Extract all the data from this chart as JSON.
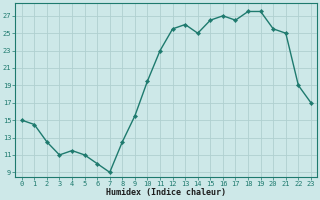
{
  "x": [
    0,
    1,
    2,
    3,
    4,
    5,
    6,
    7,
    8,
    9,
    10,
    11,
    12,
    13,
    14,
    15,
    16,
    17,
    18,
    19,
    20,
    21,
    22,
    23
  ],
  "y": [
    15,
    14.5,
    12.5,
    11,
    11.5,
    11,
    10,
    9,
    12.5,
    15.5,
    19.5,
    23,
    25.5,
    26,
    25,
    26.5,
    27,
    26.5,
    27.5,
    27.5,
    25.5,
    25,
    19,
    17
  ],
  "xlabel": "Humidex (Indice chaleur)",
  "xlim": [
    -0.5,
    23.5
  ],
  "ylim": [
    8.5,
    28.5
  ],
  "yticks": [
    9,
    11,
    13,
    15,
    17,
    19,
    21,
    23,
    25,
    27
  ],
  "xticks": [
    0,
    1,
    2,
    3,
    4,
    5,
    6,
    7,
    8,
    9,
    10,
    11,
    12,
    13,
    14,
    15,
    16,
    17,
    18,
    19,
    20,
    21,
    22,
    23
  ],
  "line_color": "#1e7a6e",
  "bg_color": "#cde8e8",
  "grid_color": "#b0d0d0",
  "tick_color": "#1e7a6e",
  "xlabel_color": "#1e1e1e"
}
